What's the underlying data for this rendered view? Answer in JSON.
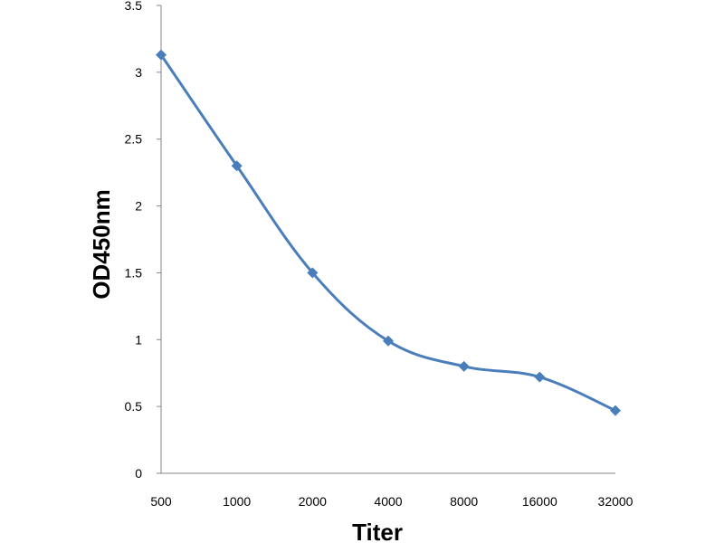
{
  "chart_data": {
    "type": "line",
    "title": "",
    "xlabel": "Titer",
    "ylabel": "OD450nm",
    "categories": [
      "500",
      "1000",
      "2000",
      "4000",
      "8000",
      "16000",
      "32000"
    ],
    "series": [
      {
        "values": [
          3.13,
          2.3,
          1.5,
          0.99,
          0.8,
          0.72,
          0.47
        ],
        "color": "#4a7ebb",
        "marker": "diamond"
      }
    ],
    "ylim": [
      0,
      3.5
    ],
    "yticks": [
      "0",
      "0.5",
      "1",
      "1.5",
      "2",
      "2.5",
      "3",
      "3.5"
    ],
    "grid": false,
    "legend": "none",
    "smooth": true
  }
}
